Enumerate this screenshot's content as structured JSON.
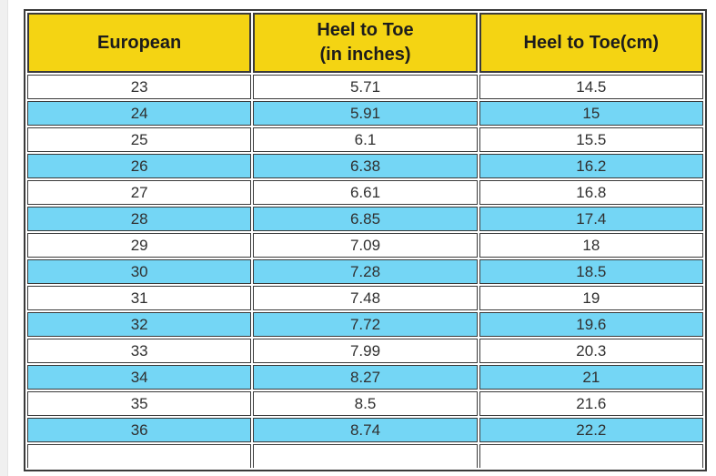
{
  "page": {
    "background_color": "#ffffff",
    "left_strip_color": "#f0f0f0"
  },
  "table": {
    "header_bg_color": "#f4d413",
    "stripe_row_color": "#74d6f5",
    "plain_row_color": "#ffffff",
    "border_color": "#3a3a3a",
    "columns": [
      "European",
      "Heel to Toe\n(in inches)",
      "Heel to Toe(cm)"
    ],
    "rows": [
      [
        "23",
        "5.71",
        "14.5"
      ],
      [
        "24",
        "5.91",
        "15"
      ],
      [
        "25",
        "6.1",
        "15.5"
      ],
      [
        "26",
        "6.38",
        "16.2"
      ],
      [
        "27",
        "6.61",
        "16.8"
      ],
      [
        "28",
        "6.85",
        "17.4"
      ],
      [
        "29",
        "7.09",
        "18"
      ],
      [
        "30",
        "7.28",
        "18.5"
      ],
      [
        "31",
        "7.48",
        "19"
      ],
      [
        "32",
        "7.72",
        "19.6"
      ],
      [
        "33",
        "7.99",
        "20.3"
      ],
      [
        "34",
        "8.27",
        "21"
      ],
      [
        "35",
        "8.5",
        "21.6"
      ],
      [
        "36",
        "8.74",
        "22.2"
      ]
    ],
    "partial_bottom_row": [
      "",
      "",
      ""
    ]
  },
  "chart_data": {
    "type": "table",
    "title": "",
    "columns": [
      "European",
      "Heel to Toe (in inches)",
      "Heel to Toe (cm)"
    ],
    "rows": [
      {
        "european": 23,
        "heel_to_toe_in": 5.71,
        "heel_to_toe_cm": 14.5
      },
      {
        "european": 24,
        "heel_to_toe_in": 5.91,
        "heel_to_toe_cm": 15
      },
      {
        "european": 25,
        "heel_to_toe_in": 6.1,
        "heel_to_toe_cm": 15.5
      },
      {
        "european": 26,
        "heel_to_toe_in": 6.38,
        "heel_to_toe_cm": 16.2
      },
      {
        "european": 27,
        "heel_to_toe_in": 6.61,
        "heel_to_toe_cm": 16.8
      },
      {
        "european": 28,
        "heel_to_toe_in": 6.85,
        "heel_to_toe_cm": 17.4
      },
      {
        "european": 29,
        "heel_to_toe_in": 7.09,
        "heel_to_toe_cm": 18
      },
      {
        "european": 30,
        "heel_to_toe_in": 7.28,
        "heel_to_toe_cm": 18.5
      },
      {
        "european": 31,
        "heel_to_toe_in": 7.48,
        "heel_to_toe_cm": 19
      },
      {
        "european": 32,
        "heel_to_toe_in": 7.72,
        "heel_to_toe_cm": 19.6
      },
      {
        "european": 33,
        "heel_to_toe_in": 7.99,
        "heel_to_toe_cm": 20.3
      },
      {
        "european": 34,
        "heel_to_toe_in": 8.27,
        "heel_to_toe_cm": 21
      },
      {
        "european": 35,
        "heel_to_toe_in": 8.5,
        "heel_to_toe_cm": 21.6
      },
      {
        "european": 36,
        "heel_to_toe_in": 8.74,
        "heel_to_toe_cm": 22.2
      }
    ],
    "layout": {
      "striped": true,
      "stripe_pattern": "even data rows (24,26,...,36) are blue, odd rows white",
      "header_style": "bold on yellow"
    }
  }
}
